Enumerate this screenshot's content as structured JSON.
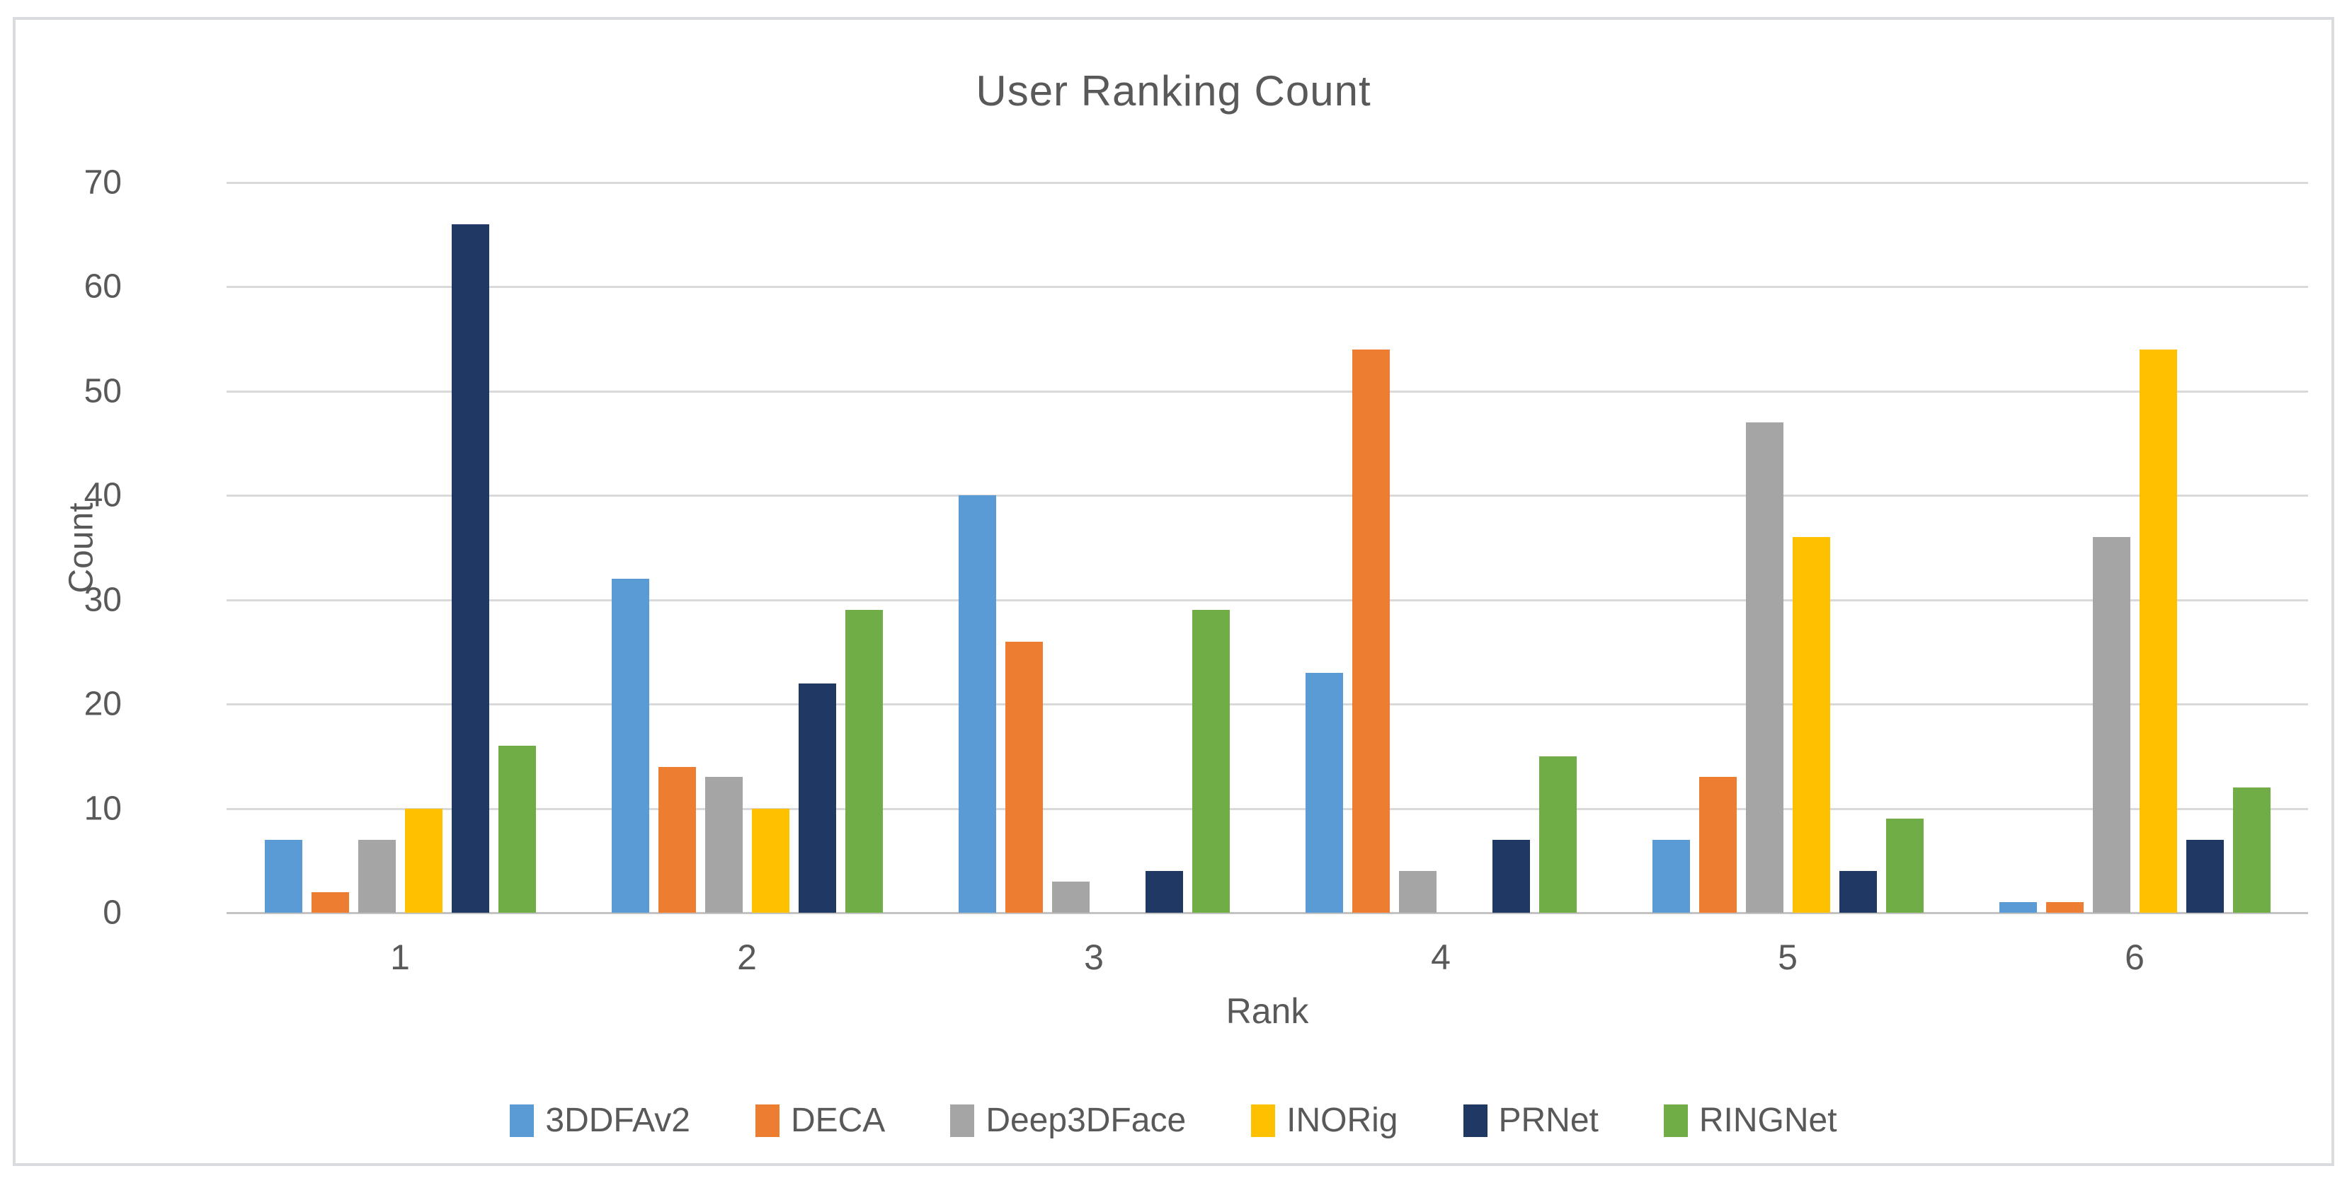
{
  "chart_data": {
    "type": "bar",
    "title": "User Ranking Count",
    "xlabel": "Rank",
    "ylabel": "Count",
    "categories": [
      "1",
      "2",
      "3",
      "4",
      "5",
      "6"
    ],
    "series": [
      {
        "name": "3DDFAv2",
        "color": "#5B9BD5",
        "values": [
          7,
          32,
          40,
          23,
          7,
          1
        ]
      },
      {
        "name": "DECA",
        "color": "#ED7D31",
        "values": [
          2,
          14,
          26,
          54,
          13,
          1
        ]
      },
      {
        "name": "Deep3DFace",
        "color": "#A5A5A5",
        "values": [
          7,
          13,
          3,
          4,
          47,
          36
        ]
      },
      {
        "name": "INORig",
        "color": "#FFC000",
        "values": [
          10,
          10,
          0,
          0,
          36,
          54
        ]
      },
      {
        "name": "PRNet",
        "color": "#1F3864",
        "values": [
          66,
          22,
          4,
          7,
          4,
          7
        ]
      },
      {
        "name": "RINGNet",
        "color": "#70AD47",
        "values": [
          16,
          29,
          29,
          15,
          9,
          12
        ]
      }
    ],
    "ylim": [
      0,
      70
    ],
    "ytick_step": 10,
    "grid": "horizontal",
    "legend_position": "bottom",
    "colors": {
      "text": "#595959",
      "gridline": "#D9D9D9",
      "axis_line": "#C3C3C3",
      "frame_border": "#D9DBDE",
      "background": "#FFFFFF"
    }
  }
}
